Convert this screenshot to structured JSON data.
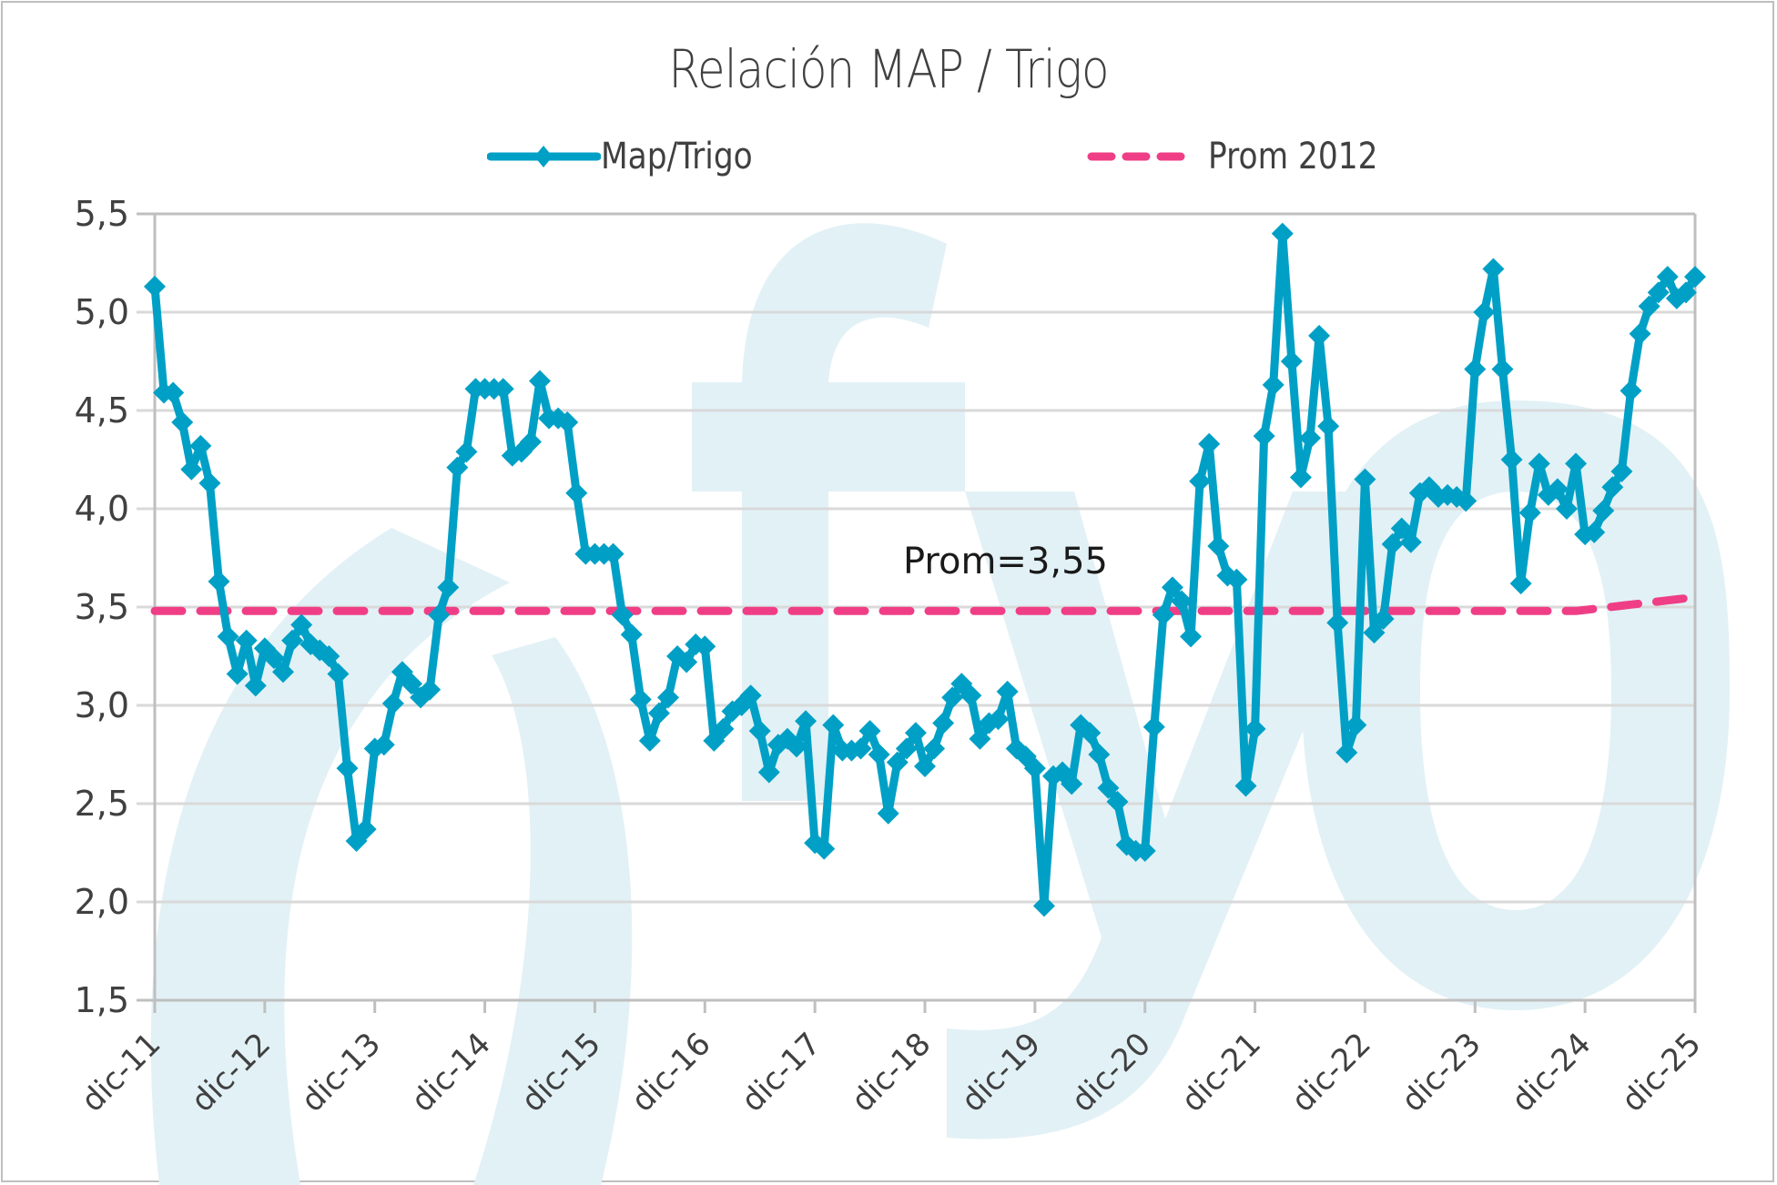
{
  "chart_data": {
    "type": "line",
    "title": "Relación MAP / Trigo",
    "xlabel": "",
    "ylabel": "",
    "ylim": [
      1.5,
      5.5
    ],
    "yticks": [
      "5,5",
      "5,0",
      "4,5",
      "4,0",
      "3,5",
      "3,0",
      "2,5",
      "2,0",
      "1,5"
    ],
    "ytick_values": [
      5.5,
      5.0,
      4.5,
      4.0,
      3.5,
      3.0,
      2.5,
      2.0,
      1.5
    ],
    "xticks": [
      "dic-11",
      "dic-12",
      "dic-13",
      "dic-14",
      "dic-15",
      "dic-16",
      "dic-17",
      "dic-18",
      "dic-19",
      "dic-20",
      "dic-21",
      "dic-22",
      "dic-23",
      "dic-24",
      "dic-25"
    ],
    "grid": true,
    "legend_position": "top-center",
    "annotation": "Prom=3,55",
    "series": [
      {
        "name": "Map/Trigo",
        "color": "#00A0C6",
        "style": "solid-diamond",
        "start_label": "dic-11",
        "frequency": "monthly",
        "values": [
          5.13,
          4.59,
          4.59,
          4.44,
          4.2,
          4.32,
          4.13,
          3.63,
          3.35,
          3.16,
          3.33,
          3.1,
          3.29,
          3.24,
          3.17,
          3.33,
          3.41,
          3.31,
          3.28,
          3.25,
          3.16,
          2.68,
          2.31,
          2.37,
          2.78,
          2.8,
          3.01,
          3.17,
          3.11,
          3.04,
          3.08,
          3.46,
          3.6,
          4.21,
          4.29,
          4.61,
          4.61,
          4.61,
          4.61,
          4.27,
          4.29,
          4.34,
          4.65,
          4.46,
          4.46,
          4.44,
          4.08,
          3.77,
          3.77,
          3.77,
          3.77,
          3.46,
          3.36,
          3.03,
          2.82,
          2.96,
          3.04,
          3.25,
          3.22,
          3.31,
          3.3,
          2.82,
          2.88,
          2.97,
          3.0,
          3.05,
          2.87,
          2.66,
          2.8,
          2.83,
          2.79,
          2.92,
          2.3,
          2.27,
          2.9,
          2.77,
          2.77,
          2.78,
          2.87,
          2.75,
          2.45,
          2.71,
          2.78,
          2.86,
          2.69,
          2.78,
          2.91,
          3.04,
          3.11,
          3.05,
          2.83,
          2.91,
          2.93,
          3.07,
          2.78,
          2.74,
          2.68,
          1.98,
          2.64,
          2.66,
          2.6,
          2.9,
          2.86,
          2.75,
          2.58,
          2.51,
          2.29,
          2.26,
          2.26,
          2.89,
          3.46,
          3.6,
          3.53,
          3.35,
          4.14,
          4.33,
          3.81,
          3.66,
          3.64,
          2.59,
          2.88,
          4.37,
          4.63,
          5.4,
          4.75,
          4.16,
          4.36,
          4.88,
          4.42,
          3.42,
          2.76,
          2.9,
          4.15,
          3.37,
          3.44,
          3.82,
          3.9,
          3.83,
          4.08,
          4.11,
          4.06,
          4.07,
          4.06,
          4.04,
          4.71,
          5.0,
          5.22,
          4.71,
          4.25,
          3.62,
          3.98,
          4.23,
          4.07,
          4.1,
          4.0,
          4.23,
          3.87,
          3.88,
          3.99,
          4.11,
          4.19,
          4.6,
          4.89,
          5.03,
          5.1,
          5.18,
          5.07,
          5.1,
          5.18
        ]
      },
      {
        "name": "Prom 2012",
        "color": "#EF3E86",
        "style": "dashed",
        "start_label": "dic-11",
        "frequency": "monthly",
        "flat_value": 3.48,
        "flat_until_index": 155,
        "end_value": 3.55
      }
    ]
  },
  "watermark": {
    "text": "()fyo",
    "color": "#E2F1F6"
  }
}
